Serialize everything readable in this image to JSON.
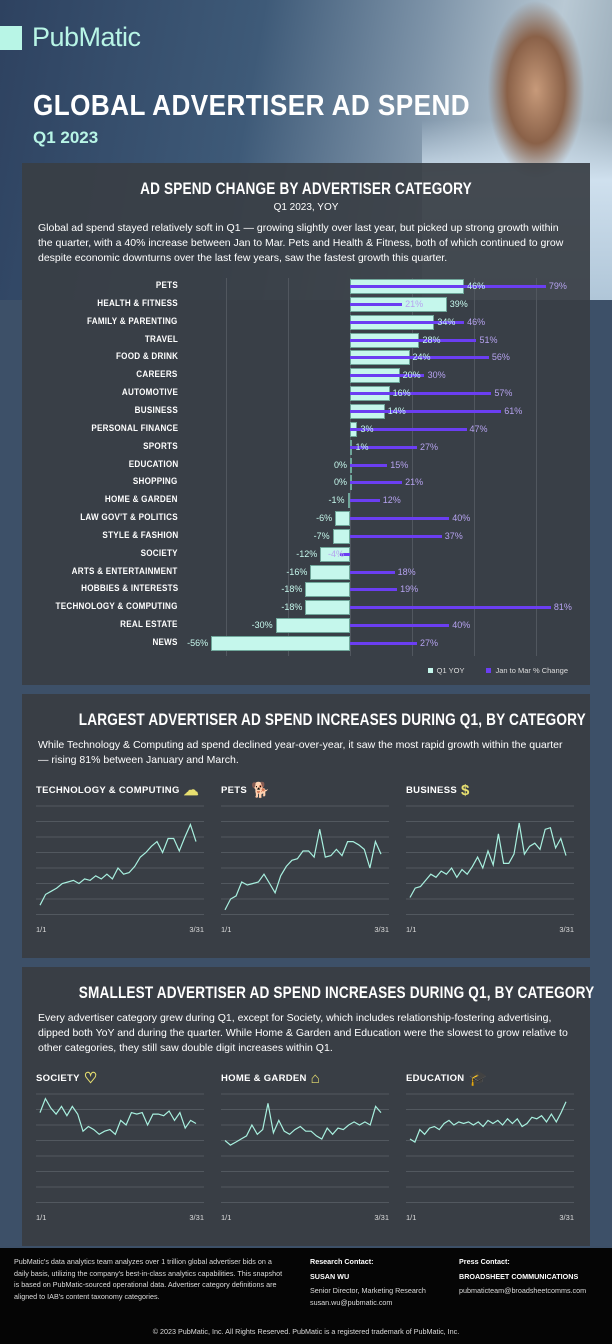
{
  "brand": "PubMatic",
  "title": "GLOBAL ADVERTISER AD SPEND",
  "subtitle": "Q1 2023",
  "section1": {
    "heading": "AD SPEND CHANGE BY ADVERTISER CATEGORY",
    "subheading": "Q1 2023, YOY",
    "description": "Global ad spend stayed relatively soft in Q1 — growing slightly over last year, but picked up strong growth within the quarter, with a 40% increase between Jan to Mar. Pets and Health & Fitness, both of which continued to grow despite economic downturns over the last few years, saw the fastest growth this quarter."
  },
  "section2": {
    "heading": "LARGEST ADVERTISER AD SPEND INCREASES DURING Q1, BY CATEGORY",
    "description": "While Technology & Computing ad spend declined year-over-year, it saw the most rapid growth within the quarter — rising 81% between January and March."
  },
  "section3": {
    "heading": "SMALLEST ADVERTISER AD SPEND INCREASES DURING Q1, BY CATEGORY",
    "description": "Every advertiser category grew during Q1, except for Society, which includes relationship-fostering advertising, dipped both YoY and during the quarter. While Home & Garden and Education were the slowest to grow relative to other categories, they still saw double digit increases within Q1."
  },
  "colors": {
    "yoy": "#c5f7ec",
    "jan_mar": "#6b3ef2",
    "icon": "#e8e070"
  },
  "chart_data": [
    {
      "type": "bar",
      "title": "AD SPEND CHANGE BY ADVERTISER CATEGORY",
      "unit": "%",
      "legend": [
        "Q1 YOY",
        "Jan to Mar % Change"
      ],
      "legend_position": "bottom-right",
      "categories": [
        "PETS",
        "HEALTH & FITNESS",
        "FAMILY & PARENTING",
        "TRAVEL",
        "FOOD & DRINK",
        "CAREERS",
        "AUTOMOTIVE",
        "BUSINESS",
        "PERSONAL FINANCE",
        "SPORTS",
        "EDUCATION",
        "SHOPPING",
        "HOME & GARDEN",
        "LAW GOV'T & POLITICS",
        "STYLE & FASHION",
        "SOCIETY",
        "ARTS & ENTERTAINMENT",
        "HOBBIES & INTERESTS",
        "TECHNOLOGY & COMPUTING",
        "REAL ESTATE",
        "NEWS"
      ],
      "series": [
        {
          "name": "Q1 YOY",
          "values": [
            46,
            39,
            34,
            28,
            24,
            20,
            16,
            14,
            3,
            1,
            0,
            0,
            -1,
            -6,
            -7,
            -12,
            -16,
            -18,
            -18,
            -30,
            -56
          ]
        },
        {
          "name": "Jan to Mar % Change",
          "values": [
            79,
            21,
            46,
            51,
            56,
            30,
            57,
            61,
            47,
            27,
            15,
            21,
            12,
            40,
            37,
            -4,
            18,
            19,
            81,
            40,
            27
          ]
        }
      ],
      "value_labels": {
        "yoy": [
          "46%",
          "39%",
          "34%",
          "28%",
          "24%",
          "20%",
          "16%",
          "14%",
          "3%",
          "1%",
          "0%",
          "0%",
          "-1%",
          "-6%",
          "-7%",
          "-12%",
          "-16%",
          "-18%",
          "-18%",
          "-30%",
          "-56%"
        ],
        "jan_mar": [
          "79%",
          "21%",
          "46%",
          "51%",
          "56%",
          "30%",
          "57%",
          "61%",
          "47%",
          "27%",
          "15%",
          "21%",
          "12%",
          "40%",
          "37%",
          "-4%",
          "18%",
          "19%",
          "81%",
          "40%",
          "27%"
        ]
      },
      "xlim": [
        -75,
        85
      ],
      "grid": true
    },
    {
      "type": "line",
      "title": "TECHNOLOGY & COMPUTING",
      "icon": "cloud-computing-icon",
      "xstart": "1/1",
      "xend": "3/31",
      "ylim": [
        0,
        7
      ],
      "values": [
        0.6,
        1.3,
        1.5,
        1.7,
        2,
        2.1,
        2.2,
        2,
        2.3,
        2.2,
        2.5,
        2.3,
        2.6,
        2.3,
        3,
        2.6,
        2.7,
        3.1,
        3.7,
        4,
        4.4,
        4.7,
        4,
        4.9,
        4.9,
        4.1,
        5,
        5.8,
        4.7
      ]
    },
    {
      "type": "line",
      "title": "PETS",
      "icon": "dog-cat-icon",
      "xstart": "1/1",
      "xend": "3/31",
      "ylim": [
        0,
        7
      ],
      "values": [
        0.3,
        1,
        1.2,
        2.1,
        1.9,
        2,
        2.1,
        2.6,
        2,
        1.4,
        2.5,
        3.1,
        3.5,
        3.6,
        4.1,
        4.1,
        3.7,
        5.5,
        3.7,
        3.8,
        4.2,
        3.8,
        4.7,
        4.7,
        4.5,
        4.2,
        3,
        4.7,
        3.9
      ]
    },
    {
      "type": "line",
      "title": "BUSINESS",
      "icon": "money-hand-icon",
      "xstart": "1/1",
      "xend": "3/31",
      "ylim": [
        0,
        7
      ],
      "values": [
        1.1,
        1.7,
        1.8,
        2.2,
        2.6,
        2.4,
        2.8,
        2.6,
        3,
        2.4,
        2.9,
        2.6,
        3.1,
        3.7,
        3,
        4.1,
        3.2,
        5.2,
        3.3,
        3.3,
        3.9,
        5.9,
        3.9,
        4.4,
        4.6,
        4.2,
        5.5,
        5.6,
        4.3,
        4.9,
        3.8
      ]
    },
    {
      "type": "line",
      "title": "SOCIETY",
      "icon": "heart-hands-icon",
      "xstart": "1/1",
      "xend": "3/31",
      "ylim": [
        0,
        7
      ],
      "values": [
        5.8,
        6.7,
        6.1,
        5.7,
        6.2,
        5.6,
        6.2,
        5.7,
        4.6,
        4.9,
        4.7,
        4.4,
        4.6,
        4.7,
        4.4,
        5.3,
        5,
        5.8,
        5.7,
        5.8,
        5,
        5.7,
        5.7,
        5.6,
        5.9,
        5.3,
        5.8,
        4.8,
        5.3,
        5.1
      ]
    },
    {
      "type": "line",
      "title": "HOME & GARDEN",
      "icon": "house-tree-icon",
      "xstart": "1/1",
      "xend": "3/31",
      "ylim": [
        0,
        7
      ],
      "values": [
        4,
        3.7,
        3.9,
        4.1,
        4.3,
        5,
        4.4,
        4.7,
        6.4,
        4.5,
        5.3,
        4.6,
        4.4,
        4.7,
        4.9,
        4.6,
        4.6,
        4.3,
        4.1,
        4.8,
        4.4,
        4.8,
        4.7,
        5,
        5.2,
        5,
        5.2,
        5,
        6.2,
        5.8
      ]
    },
    {
      "type": "line",
      "title": "EDUCATION",
      "icon": "graduation-book-icon",
      "xstart": "1/1",
      "xend": "3/31",
      "ylim": [
        0,
        7
      ],
      "values": [
        4.1,
        3.9,
        4.7,
        4.4,
        4.8,
        4.9,
        4.7,
        5.1,
        5.3,
        5,
        5.2,
        5.1,
        5.2,
        5,
        5.2,
        4.9,
        5.3,
        5.1,
        5.3,
        5,
        5.4,
        5.1,
        5.4,
        4.9,
        5.1,
        5.5,
        5.4,
        5.6,
        5.2,
        5.7,
        5.2,
        5.8,
        6.5
      ]
    }
  ],
  "footer": {
    "about": "PubMatic's data analytics team analyzes over 1 trillion global advertiser bids on a daily basis, utilizing the company's best-in-class analytics capabilities. This snapshot is based on PubMatic-sourced operational data. Advertiser category definitions are aligned to IAB's content taxonomy categories.",
    "research_label": "Research Contact:",
    "research_name": "SUSAN WU",
    "research_title": "Senior Director, Marketing Research",
    "research_email": "susan.wu@pubmatic.com",
    "press_label": "Press Contact:",
    "press_name": "BROADSHEET COMMUNICATIONS",
    "press_email": "pubmaticteam@broadsheetcomms.com",
    "copyright": "© 2023 PubMatic, Inc. All Rights Reserved. PubMatic is a registered trademark of PubMatic, Inc."
  }
}
